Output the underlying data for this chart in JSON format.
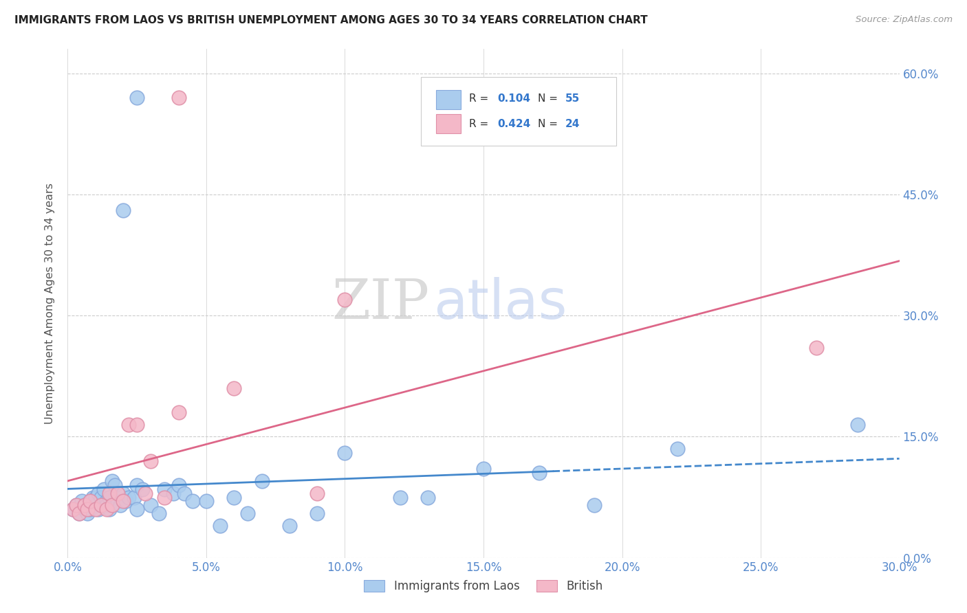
{
  "title": "IMMIGRANTS FROM LAOS VS BRITISH UNEMPLOYMENT AMONG AGES 30 TO 34 YEARS CORRELATION CHART",
  "source": "Source: ZipAtlas.com",
  "ylabel_label": "Unemployment Among Ages 30 to 34 years",
  "xlim": [
    0.0,
    0.3
  ],
  "ylim": [
    0.0,
    0.63
  ],
  "x_tick_vals": [
    0.0,
    0.05,
    0.1,
    0.15,
    0.2,
    0.25,
    0.3
  ],
  "x_tick_labels": [
    "0.0%",
    "5.0%",
    "10.0%",
    "15.0%",
    "20.0%",
    "25.0%",
    "30.0%"
  ],
  "y_tick_vals": [
    0.0,
    0.15,
    0.3,
    0.45,
    0.6
  ],
  "y_tick_labels": [
    "0.0%",
    "15.0%",
    "30.0%",
    "45.0%",
    "60.0%"
  ],
  "watermark_zip": "ZIP",
  "watermark_atlas": "atlas",
  "blue_color": "#aaccee",
  "blue_edge": "#88aadd",
  "pink_color": "#f4b8c8",
  "pink_edge": "#e090a8",
  "blue_line_color": "#4488cc",
  "pink_line_color": "#dd6688",
  "grid_color": "#cccccc",
  "background_color": "#ffffff",
  "tick_color": "#5588cc",
  "blue_label_r": "R = ",
  "blue_label_rv": "0.104",
  "blue_label_n": "N = ",
  "blue_label_nv": "55",
  "pink_label_r": "R = ",
  "pink_label_rv": "0.424",
  "pink_label_n": "N = ",
  "pink_label_nv": "24",
  "legend1": "Immigrants from Laos",
  "legend2": "British",
  "blue_x": [
    0.002,
    0.003,
    0.004,
    0.005,
    0.006,
    0.006,
    0.007,
    0.008,
    0.008,
    0.009,
    0.01,
    0.01,
    0.011,
    0.011,
    0.012,
    0.013,
    0.014,
    0.014,
    0.015,
    0.015,
    0.016,
    0.017,
    0.018,
    0.019,
    0.02,
    0.021,
    0.022,
    0.024,
    0.025,
    0.025,
    0.027,
    0.03,
    0.033,
    0.035,
    0.038,
    0.04,
    0.042,
    0.045,
    0.05,
    0.055,
    0.06,
    0.065,
    0.07,
    0.08,
    0.09,
    0.1,
    0.12,
    0.15,
    0.17,
    0.19,
    0.025,
    0.02,
    0.13,
    0.22,
    0.285
  ],
  "blue_y": [
    0.06,
    0.065,
    0.055,
    0.07,
    0.06,
    0.065,
    0.055,
    0.06,
    0.07,
    0.075,
    0.065,
    0.075,
    0.06,
    0.08,
    0.075,
    0.085,
    0.07,
    0.065,
    0.06,
    0.075,
    0.095,
    0.09,
    0.07,
    0.065,
    0.08,
    0.07,
    0.075,
    0.075,
    0.09,
    0.06,
    0.085,
    0.065,
    0.055,
    0.085,
    0.08,
    0.09,
    0.08,
    0.07,
    0.07,
    0.04,
    0.075,
    0.055,
    0.095,
    0.04,
    0.055,
    0.13,
    0.075,
    0.11,
    0.105,
    0.065,
    0.57,
    0.43,
    0.075,
    0.135,
    0.165
  ],
  "pink_x": [
    0.002,
    0.003,
    0.004,
    0.006,
    0.007,
    0.008,
    0.01,
    0.012,
    0.014,
    0.015,
    0.016,
    0.018,
    0.02,
    0.022,
    0.025,
    0.028,
    0.03,
    0.035,
    0.04,
    0.06,
    0.09,
    0.1,
    0.27,
    0.04
  ],
  "pink_y": [
    0.06,
    0.065,
    0.055,
    0.065,
    0.06,
    0.07,
    0.06,
    0.065,
    0.06,
    0.08,
    0.065,
    0.08,
    0.07,
    0.165,
    0.165,
    0.08,
    0.12,
    0.075,
    0.18,
    0.21,
    0.08,
    0.32,
    0.26,
    0.57
  ]
}
